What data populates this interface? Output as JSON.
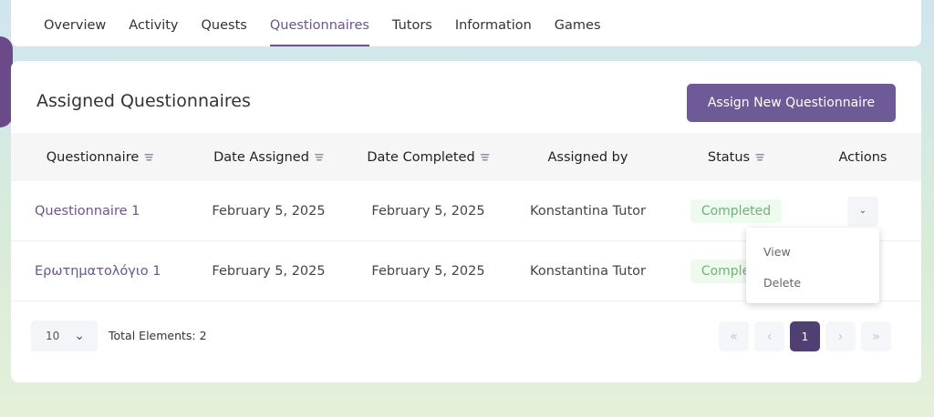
{
  "nav": {
    "tabs": [
      "Overview",
      "Activity",
      "Quests",
      "Questionnaires",
      "Tutors",
      "Information",
      "Games"
    ],
    "active": "Questionnaires"
  },
  "card": {
    "title": "Assigned Questionnaires",
    "assign_button": "Assign New Questionnaire"
  },
  "table": {
    "headers": [
      "Questionnaire",
      "Date Assigned",
      "Date Completed",
      "Assigned by",
      "Status",
      "Actions"
    ],
    "rows": [
      {
        "questionnaire": "Questionnaire 1",
        "date_assigned": "February 5, 2025",
        "date_completed": "February 5, 2025",
        "assigned_by": "Konstantina Tutor",
        "status": "Completed"
      },
      {
        "questionnaire": "Ερωτηματολόγιο 1",
        "date_assigned": "February 5, 2025",
        "date_completed": "February 5, 2025",
        "assigned_by": "Konstantina Tutor",
        "status": "Completed"
      }
    ]
  },
  "actions_menu": {
    "items": [
      "View",
      "Delete"
    ]
  },
  "footer": {
    "page_size": "10",
    "total": "Total Elements: 2",
    "current_page": "1"
  },
  "colors": {
    "accent": "#6e5a96",
    "status_green": "#6fb27a"
  }
}
